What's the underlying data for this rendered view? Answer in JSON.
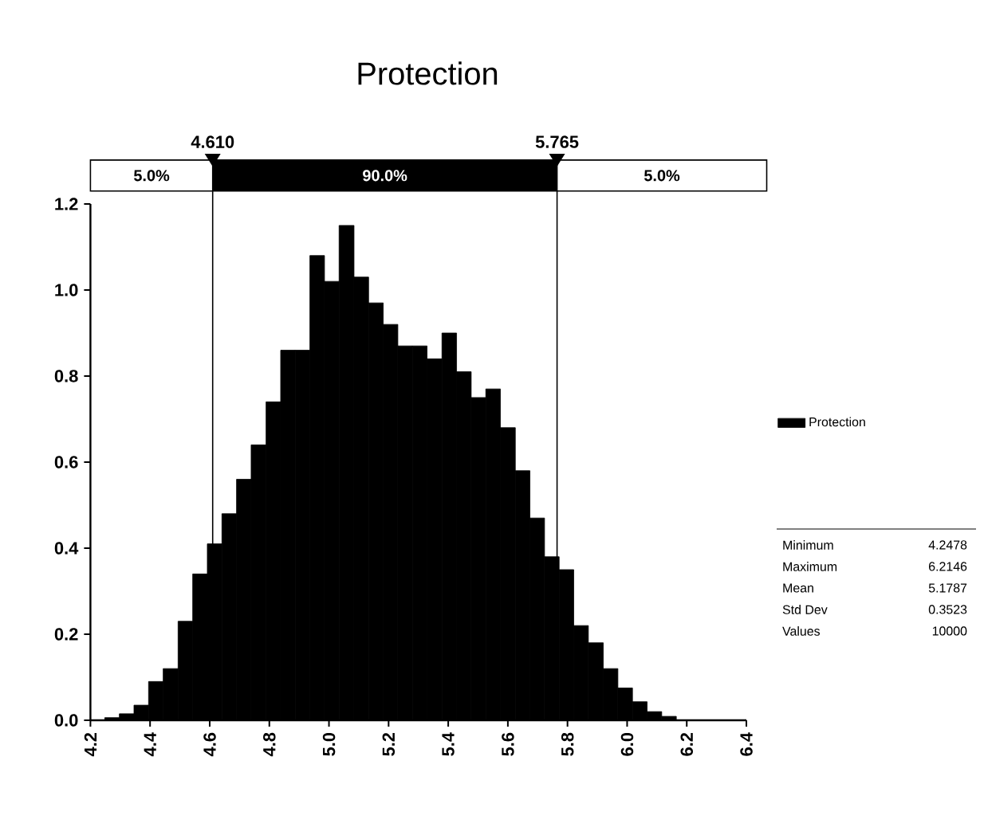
{
  "chart_data": {
    "type": "histogram",
    "title": "Protection",
    "bins": [
      4.248,
      4.297,
      4.346,
      4.395,
      4.444,
      4.494,
      4.543,
      4.592,
      4.641,
      4.69,
      4.739,
      4.789,
      4.838,
      4.887,
      4.936,
      4.985,
      5.034,
      5.084,
      5.133,
      5.182,
      5.231,
      5.28,
      5.329,
      5.379,
      5.428,
      5.477,
      5.526,
      5.575,
      5.625,
      5.674,
      5.723,
      5.772,
      5.821,
      5.87,
      5.92,
      5.969,
      6.018,
      6.067,
      6.116,
      6.165,
      6.215
    ],
    "series": [
      {
        "name": "Protection",
        "color": "#000000",
        "values": [
          0.006,
          0.015,
          0.035,
          0.09,
          0.12,
          0.23,
          0.34,
          0.41,
          0.48,
          0.56,
          0.64,
          0.74,
          0.86,
          0.86,
          1.08,
          1.02,
          1.15,
          1.03,
          0.97,
          0.92,
          0.87,
          0.87,
          0.84,
          0.9,
          0.81,
          0.75,
          0.77,
          0.68,
          0.58,
          0.47,
          0.38,
          0.35,
          0.22,
          0.18,
          0.12,
          0.075,
          0.043,
          0.02,
          0.009,
          null
        ]
      }
    ],
    "xlim": [
      4.2,
      6.4
    ],
    "xticks": [
      4.2,
      4.4,
      4.6,
      4.8,
      {
        "value": 5.0,
        "label": "5.0"
      },
      5.2,
      5.4,
      5.6,
      5.8,
      {
        "value": 6.0,
        "label": "6.0"
      },
      6.2,
      6.4
    ],
    "ylim": [
      0,
      1.2
    ],
    "yticks": [
      {
        "value": 0,
        "label": "0.0"
      },
      0.2,
      0.4,
      0.6,
      0.8,
      {
        "value": 1.0,
        "label": "1.0"
      },
      1.2
    ],
    "ref_lines": [
      {
        "axis": "x",
        "value": 4.61,
        "label": "4.610",
        "color": "#000000"
      },
      {
        "axis": "x",
        "value": 5.765,
        "label": "5.765",
        "color": "#000000"
      }
    ],
    "annotations": [
      "5.0%",
      "90.0%",
      "5.0%",
      "Minimum",
      "4.2478",
      "Maximum",
      "6.2146",
      "Mean",
      "5.1787",
      "Std Dev",
      "0.3523",
      "Values",
      "10000"
    ],
    "legend": "right"
  }
}
